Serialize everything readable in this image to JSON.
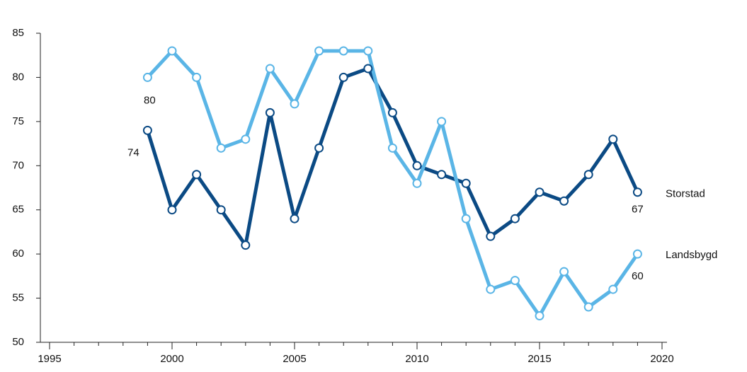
{
  "chart_data": {
    "type": "line",
    "x": [
      1999,
      2000,
      2001,
      2002,
      2003,
      2004,
      2005,
      2006,
      2007,
      2008,
      2009,
      2010,
      2011,
      2012,
      2013,
      2014,
      2015,
      2016,
      2017,
      2018,
      2019
    ],
    "series": [
      {
        "name": "Storstad",
        "color": "#0b4a84",
        "values": [
          74,
          65,
          69,
          65,
          61,
          76,
          64,
          72,
          80,
          81,
          76,
          70,
          69,
          68,
          62,
          64,
          67,
          66,
          69,
          73,
          67
        ]
      },
      {
        "name": "Landsbygd",
        "color": "#5ab5e6",
        "values": [
          80,
          83,
          80,
          72,
          73,
          81,
          77,
          83,
          83,
          83,
          72,
          68,
          75,
          64,
          56,
          57,
          53,
          58,
          54,
          56,
          60
        ]
      }
    ],
    "xlim": [
      1995,
      2020
    ],
    "xticks": [
      1995,
      2000,
      2005,
      2010,
      2015,
      2020
    ],
    "minor_xticks": [
      1995,
      1996,
      1997,
      1998,
      1999,
      2000,
      2001,
      2002,
      2003,
      2004,
      2005,
      2006,
      2007,
      2008,
      2009,
      2010,
      2011,
      2012,
      2013,
      2014,
      2015,
      2016,
      2017,
      2018,
      2019,
      2020
    ],
    "ylim": [
      50,
      85
    ],
    "yticks": [
      50,
      55,
      60,
      65,
      70,
      75,
      80,
      85
    ],
    "grid": false
  }
}
